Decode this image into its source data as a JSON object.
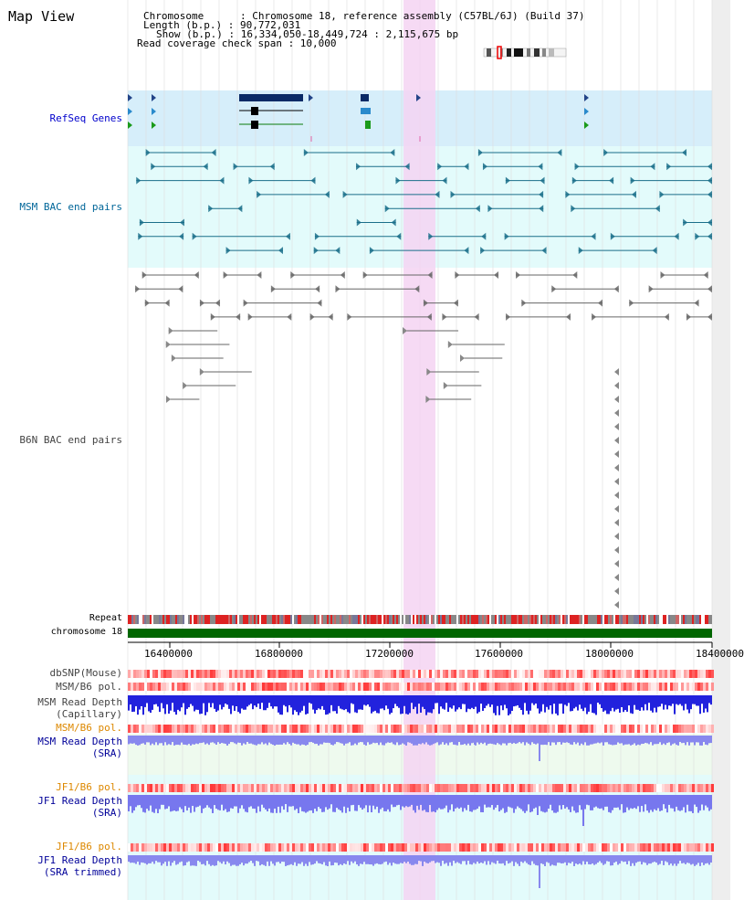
{
  "title": "Map View",
  "info": {
    "chromosome": "Chromosome      : Chromosome 18, reference assembly (C57BL/6J) (Build 37)",
    "length": "Length (b.p.) : 90,772,031",
    "show": "Show (b.p.) : 16,334,050-18,449,724 : 2,115,675 bp",
    "coverage": "Read coverage check span : 10,000"
  },
  "tracks": {
    "refseq": "RefSeq Genes",
    "msm_bac": "MSM BAC end pairs",
    "b6n_bac": "B6N BAC end pairs",
    "repeat": "Repeat",
    "chromosome": "chromosome 18",
    "dbsnp": "dbSNP(Mouse)",
    "msm_pol": "MSM/B6 pol.",
    "msm_depth_cap_1": "MSM Read Depth",
    "msm_depth_cap_2": "(Capillary)",
    "msm_pol_2": "MSM/B6 pol.",
    "msm_depth_sra_1": "MSM Read Depth",
    "msm_depth_sra_2": "(SRA)",
    "jf1_pol_1": "JF1/B6 pol.",
    "jf1_depth_sra_1": "JF1 Read Depth",
    "jf1_depth_sra_2": "(SRA)",
    "jf1_pol_2": "JF1/B6 pol.",
    "jf1_depth_trim_1": "JF1 Read Depth",
    "jf1_depth_trim_2": "(SRA trimmed)"
  },
  "axis_ticks": [
    "16400000",
    "16800000",
    "17200000",
    "17600000",
    "18000000",
    "18400000"
  ],
  "colors": {
    "refseq_bg": "#d6eefa",
    "msm_bg": "#e3fbfb",
    "highlight": "#f5d3f2",
    "chromosome_bar": "#006600",
    "refseq_label": "#0000cc",
    "msm_label": "#006699",
    "b6n_label": "#444444",
    "pol_label": "#dd8800",
    "depth_label": "#000099",
    "gene_dark": "#0a2a66",
    "depth_blue": "#3333dd"
  }
}
